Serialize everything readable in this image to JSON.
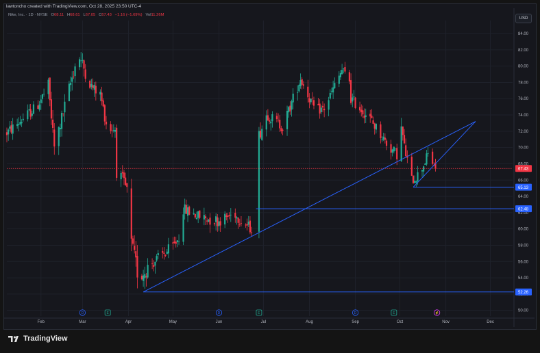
{
  "header": {
    "text": "lawtoncho created with TradingView.com, Oct 28, 2025 23:50 UTC-4"
  },
  "symbol_line": {
    "name": "Nike, Inc. · 1D · NYSE",
    "o_label": "O",
    "o_value": "68.11",
    "h_label": "H",
    "h_value": "68.61",
    "l_label": "L",
    "l_value": "67.05",
    "c_label": "C",
    "c_value": "67.43",
    "change": "−1.16 (−1.69%)",
    "vol_label": "Vol",
    "vol_value": "11.26M"
  },
  "currency_button": "USD",
  "brand": {
    "name": "TradingView"
  },
  "colors": {
    "up": "#22ab94",
    "down": "#f23645",
    "line": "#2962ff",
    "grid": "#1f222b",
    "axis_text": "#b2b5be"
  },
  "chart_data": {
    "type": "candlestick",
    "title": "",
    "xlabel": "",
    "ylabel": "",
    "y_ticks": [
      "50.00",
      "52.00",
      "54.00",
      "56.00",
      "58.00",
      "60.00",
      "62.00",
      "64.00",
      "66.00",
      "68.00",
      "70.00",
      "72.00",
      "74.00",
      "76.00",
      "78.00",
      "80.00",
      "82.00",
      "84.00"
    ],
    "ylim": [
      49.3,
      85.6
    ],
    "x_months": [
      {
        "label": "Feb",
        "day": 23
      },
      {
        "label": "Mar",
        "day": 51
      },
      {
        "label": "Apr",
        "day": 82
      },
      {
        "label": "May",
        "day": 112
      },
      {
        "label": "Jun",
        "day": 143
      },
      {
        "label": "Jul",
        "day": 173
      },
      {
        "label": "Aug",
        "day": 204
      },
      {
        "label": "Sep",
        "day": 235
      },
      {
        "label": "Oct",
        "day": 265
      },
      {
        "label": "Nov",
        "day": 296
      },
      {
        "label": "Dec",
        "day": 326
      }
    ],
    "x_day_range": [
      0,
      341
    ],
    "events": [
      {
        "letter": "D",
        "kind": "dividend",
        "day": 51
      },
      {
        "letter": "E",
        "kind": "earnings",
        "day": 68
      },
      {
        "letter": "D",
        "kind": "dividend",
        "day": 143
      },
      {
        "letter": "E",
        "kind": "earnings",
        "day": 170
      },
      {
        "letter": "D",
        "kind": "dividend",
        "day": 235
      },
      {
        "letter": "E",
        "kind": "earnings",
        "day": 261
      },
      {
        "letter": "⚡",
        "kind": "split",
        "day": 290
      }
    ],
    "price_line": {
      "value": 67.43,
      "label": "67.43"
    },
    "horizontal_levels": [
      {
        "value": 65.13,
        "label": "65.13",
        "from_day": 274
      },
      {
        "value": 62.48,
        "label": "62.48",
        "from_day": 168
      },
      {
        "value": 52.26,
        "label": "52.26",
        "from_day": 92
      }
    ],
    "trendlines": [
      {
        "from": {
          "day": 92,
          "value": 52.26
        },
        "to": {
          "day": 316,
          "value": 73.2
        }
      },
      {
        "from": {
          "day": 274,
          "value": 65.13
        },
        "to": {
          "day": 316,
          "value": 73.2
        }
      }
    ],
    "segments": [
      {
        "start_day": 0,
        "end_day": 20,
        "start": 71.8,
        "end": 75.0,
        "vol": 1.0
      },
      {
        "start_day": 20,
        "end_day": 28,
        "start": 75.0,
        "end": 77.5,
        "vol": 1.1
      },
      {
        "start_day": 28,
        "end_day": 32,
        "start": 77.5,
        "end": 70.0,
        "vol": 1.3
      },
      {
        "start_day": 32,
        "end_day": 48,
        "start": 70.0,
        "end": 81.5,
        "vol": 1.3
      },
      {
        "start_day": 48,
        "end_day": 57,
        "start": 81.5,
        "end": 77.5,
        "vol": 1.2
      },
      {
        "start_day": 57,
        "end_day": 63,
        "start": 77.5,
        "end": 76.5,
        "vol": 1.0
      },
      {
        "start_day": 63,
        "end_day": 68,
        "start": 76.5,
        "end": 72.2,
        "vol": 1.1
      },
      {
        "start_day": 68,
        "end_day": 74,
        "start": 72.2,
        "end": 72.3,
        "vol": 0.9
      },
      {
        "start_day": 74,
        "end_day": 78,
        "start": 67.0,
        "end": 66.0,
        "vol": 1.1
      },
      {
        "start_day": 78,
        "end_day": 84,
        "start": 66.0,
        "end": 63.5,
        "vol": 1.2
      },
      {
        "start_day": 84,
        "end_day": 89,
        "start": 58.0,
        "end": 54.0,
        "vol": 1.8
      },
      {
        "start_day": 89,
        "end_day": 96,
        "start": 54.0,
        "end": 55.5,
        "vol": 1.6
      },
      {
        "start_day": 96,
        "end_day": 112,
        "start": 55.5,
        "end": 57.8,
        "vol": 1.1
      },
      {
        "start_day": 112,
        "end_day": 118,
        "start": 57.8,
        "end": 59.5,
        "vol": 1.0
      },
      {
        "start_day": 118,
        "end_day": 130,
        "start": 62.5,
        "end": 61.5,
        "vol": 1.0
      },
      {
        "start_day": 130,
        "end_day": 143,
        "start": 61.5,
        "end": 61.0,
        "vol": 1.2
      },
      {
        "start_day": 143,
        "end_day": 155,
        "start": 61.0,
        "end": 62.0,
        "vol": 1.0
      },
      {
        "start_day": 155,
        "end_day": 165,
        "start": 61.5,
        "end": 60.0,
        "vol": 1.0
      },
      {
        "start_day": 165,
        "end_day": 168,
        "start": 60.0,
        "end": 61.0,
        "vol": 0.8
      },
      {
        "start_day": 170,
        "end_day": 176,
        "start": 71.5,
        "end": 74.5,
        "vol": 1.2
      },
      {
        "start_day": 176,
        "end_day": 186,
        "start": 74.0,
        "end": 72.5,
        "vol": 1.0
      },
      {
        "start_day": 186,
        "end_day": 198,
        "start": 72.5,
        "end": 78.5,
        "vol": 1.1
      },
      {
        "start_day": 198,
        "end_day": 208,
        "start": 78.5,
        "end": 74.5,
        "vol": 1.0
      },
      {
        "start_day": 208,
        "end_day": 214,
        "start": 74.5,
        "end": 74.8,
        "vol": 0.9
      },
      {
        "start_day": 214,
        "end_day": 226,
        "start": 74.8,
        "end": 79.5,
        "vol": 1.0
      },
      {
        "start_day": 226,
        "end_day": 232,
        "start": 79.5,
        "end": 78.0,
        "vol": 0.9
      },
      {
        "start_day": 232,
        "end_day": 245,
        "start": 76.0,
        "end": 73.5,
        "vol": 1.0
      },
      {
        "start_day": 245,
        "end_day": 258,
        "start": 73.5,
        "end": 70.0,
        "vol": 1.0
      },
      {
        "start_day": 258,
        "end_day": 264,
        "start": 70.0,
        "end": 69.0,
        "vol": 1.0
      },
      {
        "start_day": 264,
        "end_day": 268,
        "start": 74.0,
        "end": 70.5,
        "vol": 1.3
      },
      {
        "start_day": 268,
        "end_day": 273,
        "start": 70.0,
        "end": 66.0,
        "vol": 1.1
      },
      {
        "start_day": 273,
        "end_day": 278,
        "start": 66.0,
        "end": 66.8,
        "vol": 1.0
      },
      {
        "start_day": 278,
        "end_day": 285,
        "start": 66.8,
        "end": 69.5,
        "vol": 1.0
      },
      {
        "start_day": 285,
        "end_day": 287,
        "start": 69.5,
        "end": 68.2,
        "vol": 0.9
      },
      {
        "start_day": 287,
        "end_day": 290,
        "start": 68.11,
        "end": 67.43,
        "vol": 0.8
      }
    ]
  }
}
